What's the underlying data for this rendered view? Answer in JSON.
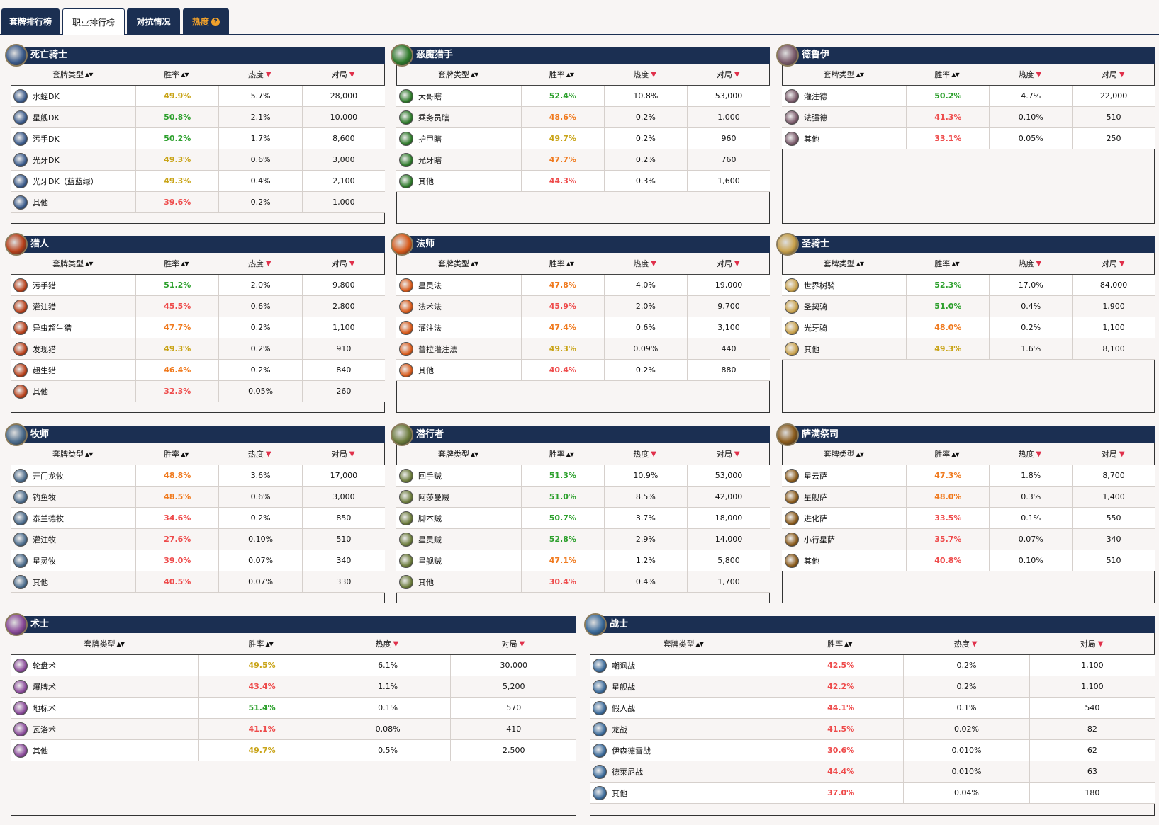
{
  "tabs": [
    {
      "label": "套牌排行榜"
    },
    {
      "label": "职业排行榜"
    },
    {
      "label": "对抗情况"
    },
    {
      "label": "热度"
    }
  ],
  "headers": {
    "deck": "套牌类型",
    "winrate": "胜率",
    "popularity": "热度",
    "games": "对局"
  },
  "colors": {
    "green": "#2da02d",
    "yellow": "#c9a418",
    "orange": "#f07a1e",
    "red": "#ee4b4b",
    "header": "#1b2f52"
  },
  "classes": [
    {
      "name": "死亡骑士",
      "icon": "death-knight-icon",
      "color": "#3a5a8a",
      "rows": [
        {
          "deck": "水蛭DK",
          "wr": "49.9%",
          "c": "yellow",
          "pop": "5.7%",
          "games": "28,000"
        },
        {
          "deck": "星舰DK",
          "wr": "50.8%",
          "c": "green",
          "pop": "2.1%",
          "games": "10,000"
        },
        {
          "deck": "污手DK",
          "wr": "50.2%",
          "c": "green",
          "pop": "1.7%",
          "games": "8,600"
        },
        {
          "deck": "光牙DK",
          "wr": "49.3%",
          "c": "yellow",
          "pop": "0.6%",
          "games": "3,000"
        },
        {
          "deck": "光牙DK（蓝蓝绿）",
          "wr": "49.3%",
          "c": "yellow",
          "pop": "0.4%",
          "games": "2,100"
        },
        {
          "deck": "其他",
          "wr": "39.6%",
          "c": "red",
          "pop": "0.2%",
          "games": "1,000"
        }
      ]
    },
    {
      "name": "恶魔猎手",
      "icon": "demon-hunter-icon",
      "color": "#2e7a2a",
      "rows": [
        {
          "deck": "大哥瞎",
          "wr": "52.4%",
          "c": "green",
          "pop": "10.8%",
          "games": "53,000"
        },
        {
          "deck": "乘务员瞎",
          "wr": "48.6%",
          "c": "orange",
          "pop": "0.2%",
          "games": "1,000"
        },
        {
          "deck": "护甲瞎",
          "wr": "49.7%",
          "c": "yellow",
          "pop": "0.2%",
          "games": "960"
        },
        {
          "deck": "光牙瞎",
          "wr": "47.7%",
          "c": "orange",
          "pop": "0.2%",
          "games": "760"
        },
        {
          "deck": "其他",
          "wr": "44.3%",
          "c": "red",
          "pop": "0.3%",
          "games": "1,600"
        }
      ]
    },
    {
      "name": "德鲁伊",
      "icon": "druid-icon",
      "color": "#7a5a6a",
      "rows": [
        {
          "deck": "灌注德",
          "wr": "50.2%",
          "c": "green",
          "pop": "4.7%",
          "games": "22,000"
        },
        {
          "deck": "法强德",
          "wr": "41.3%",
          "c": "red",
          "pop": "0.10%",
          "games": "510"
        },
        {
          "deck": "其他",
          "wr": "33.1%",
          "c": "red",
          "pop": "0.05%",
          "games": "250"
        }
      ]
    },
    {
      "name": "猎人",
      "icon": "hunter-icon",
      "color": "#b8401a",
      "rows": [
        {
          "deck": "污手猎",
          "wr": "51.2%",
          "c": "green",
          "pop": "2.0%",
          "games": "9,800"
        },
        {
          "deck": "灌注猎",
          "wr": "45.5%",
          "c": "red",
          "pop": "0.6%",
          "games": "2,800"
        },
        {
          "deck": "异虫超生猎",
          "wr": "47.7%",
          "c": "orange",
          "pop": "0.2%",
          "games": "1,100"
        },
        {
          "deck": "发现猎",
          "wr": "49.3%",
          "c": "yellow",
          "pop": "0.2%",
          "games": "910"
        },
        {
          "deck": "超生猎",
          "wr": "46.4%",
          "c": "orange",
          "pop": "0.2%",
          "games": "840"
        },
        {
          "deck": "其他",
          "wr": "32.3%",
          "c": "red",
          "pop": "0.05%",
          "games": "260"
        }
      ]
    },
    {
      "name": "法师",
      "icon": "mage-icon",
      "color": "#d85a1a",
      "rows": [
        {
          "deck": "星灵法",
          "wr": "47.8%",
          "c": "orange",
          "pop": "4.0%",
          "games": "19,000"
        },
        {
          "deck": "法术法",
          "wr": "45.9%",
          "c": "red",
          "pop": "2.0%",
          "games": "9,700"
        },
        {
          "deck": "灌注法",
          "wr": "47.4%",
          "c": "orange",
          "pop": "0.6%",
          "games": "3,100"
        },
        {
          "deck": "蕾拉灌注法",
          "wr": "49.3%",
          "c": "yellow",
          "pop": "0.09%",
          "games": "440"
        },
        {
          "deck": "其他",
          "wr": "40.4%",
          "c": "red",
          "pop": "0.2%",
          "games": "880"
        }
      ]
    },
    {
      "name": "圣骑士",
      "icon": "paladin-icon",
      "color": "#c8a04a",
      "rows": [
        {
          "deck": "世界树骑",
          "wr": "52.3%",
          "c": "green",
          "pop": "17.0%",
          "games": "84,000"
        },
        {
          "deck": "圣契骑",
          "wr": "51.0%",
          "c": "green",
          "pop": "0.4%",
          "games": "1,900"
        },
        {
          "deck": "光牙骑",
          "wr": "48.0%",
          "c": "orange",
          "pop": "0.2%",
          "games": "1,100"
        },
        {
          "deck": "其他",
          "wr": "49.3%",
          "c": "yellow",
          "pop": "1.6%",
          "games": "8,100"
        }
      ]
    },
    {
      "name": "牧师",
      "icon": "priest-icon",
      "color": "#4a6a8a",
      "rows": [
        {
          "deck": "开门龙牧",
          "wr": "48.8%",
          "c": "orange",
          "pop": "3.6%",
          "games": "17,000"
        },
        {
          "deck": "钓鱼牧",
          "wr": "48.5%",
          "c": "orange",
          "pop": "0.6%",
          "games": "3,000"
        },
        {
          "deck": "泰兰德牧",
          "wr": "34.6%",
          "c": "red",
          "pop": "0.2%",
          "games": "850"
        },
        {
          "deck": "灌注牧",
          "wr": "27.6%",
          "c": "red",
          "pop": "0.10%",
          "games": "510"
        },
        {
          "deck": "星灵牧",
          "wr": "39.0%",
          "c": "red",
          "pop": "0.07%",
          "games": "340"
        },
        {
          "deck": "其他",
          "wr": "40.5%",
          "c": "red",
          "pop": "0.07%",
          "games": "330"
        }
      ]
    },
    {
      "name": "潜行者",
      "icon": "rogue-icon",
      "color": "#6a7a3a",
      "rows": [
        {
          "deck": "回手贼",
          "wr": "51.3%",
          "c": "green",
          "pop": "10.9%",
          "games": "53,000"
        },
        {
          "deck": "阿莎曼贼",
          "wr": "51.0%",
          "c": "green",
          "pop": "8.5%",
          "games": "42,000"
        },
        {
          "deck": "脚本贼",
          "wr": "50.7%",
          "c": "green",
          "pop": "3.7%",
          "games": "18,000"
        },
        {
          "deck": "星灵贼",
          "wr": "52.8%",
          "c": "green",
          "pop": "2.9%",
          "games": "14,000"
        },
        {
          "deck": "星舰贼",
          "wr": "47.1%",
          "c": "orange",
          "pop": "1.2%",
          "games": "5,800"
        },
        {
          "deck": "其他",
          "wr": "30.4%",
          "c": "red",
          "pop": "0.4%",
          "games": "1,700"
        }
      ]
    },
    {
      "name": "萨满祭司",
      "icon": "shaman-icon",
      "color": "#8a5a1a",
      "rows": [
        {
          "deck": "星云萨",
          "wr": "47.3%",
          "c": "orange",
          "pop": "1.8%",
          "games": "8,700"
        },
        {
          "deck": "星舰萨",
          "wr": "48.0%",
          "c": "orange",
          "pop": "0.3%",
          "games": "1,400"
        },
        {
          "deck": "进化萨",
          "wr": "33.5%",
          "c": "red",
          "pop": "0.1%",
          "games": "550"
        },
        {
          "deck": "小行星萨",
          "wr": "35.7%",
          "c": "red",
          "pop": "0.07%",
          "games": "340"
        },
        {
          "deck": "其他",
          "wr": "40.8%",
          "c": "red",
          "pop": "0.10%",
          "games": "510"
        }
      ]
    },
    {
      "name": "术士",
      "icon": "warlock-icon",
      "color": "#8a4a9a",
      "rows": [
        {
          "deck": "轮盘术",
          "wr": "49.5%",
          "c": "yellow",
          "pop": "6.1%",
          "games": "30,000"
        },
        {
          "deck": "爆牌术",
          "wr": "43.4%",
          "c": "red",
          "pop": "1.1%",
          "games": "5,200"
        },
        {
          "deck": "地标术",
          "wr": "51.4%",
          "c": "green",
          "pop": "0.1%",
          "games": "570"
        },
        {
          "deck": "瓦洛术",
          "wr": "41.1%",
          "c": "red",
          "pop": "0.08%",
          "games": "410"
        },
        {
          "deck": "其他",
          "wr": "49.7%",
          "c": "yellow",
          "pop": "0.5%",
          "games": "2,500"
        }
      ]
    },
    {
      "name": "战士",
      "icon": "warrior-icon",
      "color": "#3a6a9a",
      "rows": [
        {
          "deck": "嘲讽战",
          "wr": "42.5%",
          "c": "red",
          "pop": "0.2%",
          "games": "1,100"
        },
        {
          "deck": "星舰战",
          "wr": "42.2%",
          "c": "red",
          "pop": "0.2%",
          "games": "1,100"
        },
        {
          "deck": "假人战",
          "wr": "44.1%",
          "c": "red",
          "pop": "0.1%",
          "games": "540"
        },
        {
          "deck": "龙战",
          "wr": "41.5%",
          "c": "red",
          "pop": "0.02%",
          "games": "82"
        },
        {
          "deck": "伊森德雷战",
          "wr": "30.6%",
          "c": "red",
          "pop": "0.010%",
          "games": "62"
        },
        {
          "deck": "德莱尼战",
          "wr": "44.4%",
          "c": "red",
          "pop": "0.010%",
          "games": "63"
        },
        {
          "deck": "其他",
          "wr": "37.0%",
          "c": "red",
          "pop": "0.04%",
          "games": "180"
        }
      ]
    }
  ]
}
